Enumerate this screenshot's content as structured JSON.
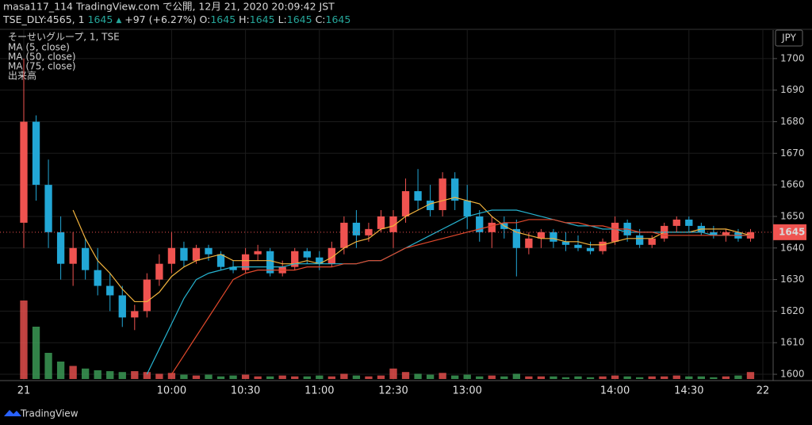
{
  "header": {
    "line1": "masa117_114 TradingView.com で公開, 12月 21, 2020 20:09:42 JST",
    "symbol": "TSE_DLY:4565, 1",
    "price": "1645",
    "arrow": "▲",
    "change": "+97 (+6.27%)",
    "o_label": "O:",
    "o": "1645",
    "h_label": "H:",
    "h": "1645",
    "l_label": "L:",
    "l": "1645",
    "c_label": "C:",
    "c": "1645",
    "footer": "TradingView"
  },
  "chart_data": {
    "type": "candlestick",
    "title": "そーせいグループ, 1, TSE",
    "currency": "JPY",
    "categories": [
      "21",
      null,
      null,
      null,
      null,
      null,
      null,
      null,
      null,
      null,
      null,
      null,
      "10:00",
      null,
      null,
      null,
      null,
      null,
      "10:30",
      null,
      null,
      null,
      null,
      null,
      "11:00",
      null,
      null,
      null,
      null,
      null,
      "12:30",
      null,
      null,
      null,
      null,
      null,
      "13:00",
      null,
      null,
      null,
      null,
      null,
      null,
      null,
      null,
      null,
      null,
      null,
      "14:00",
      null,
      null,
      null,
      null,
      null,
      "14:30",
      null,
      null,
      null,
      null,
      null,
      "22"
    ],
    "open": [
      1648,
      1680,
      1660,
      1645,
      1635,
      1640,
      1633,
      1628,
      1625,
      1618,
      1620,
      1630,
      1635,
      1640,
      1636,
      1640,
      1638,
      1634,
      1633,
      1638,
      1639,
      1632,
      1634,
      1639,
      1637,
      1635,
      1640,
      1648,
      1644,
      1646,
      1645,
      1650,
      1658,
      1655,
      1652,
      1662,
      1655,
      1650,
      1645,
      1648,
      1646,
      1640,
      1643,
      1645,
      1642,
      1641,
      1640,
      1639,
      1642,
      1648,
      1644,
      1641,
      1643,
      1647,
      1649,
      1647,
      1645,
      1644,
      1645,
      1643,
      null
    ],
    "high": [
      1700,
      1682,
      1668,
      1650,
      1645,
      1643,
      1640,
      1632,
      1628,
      1622,
      1632,
      1638,
      1645,
      1642,
      1641,
      1641,
      1639,
      1636,
      1640,
      1641,
      1640,
      1636,
      1640,
      1640,
      1639,
      1642,
      1650,
      1652,
      1648,
      1652,
      1652,
      1662,
      1665,
      1660,
      1664,
      1664,
      1660,
      1652,
      1650,
      1650,
      1649,
      1645,
      1646,
      1646,
      1645,
      1644,
      1642,
      1643,
      1650,
      1649,
      1646,
      1644,
      1648,
      1650,
      1650,
      1648,
      1647,
      1646,
      1646,
      1646,
      null
    ],
    "low": [
      1640,
      1655,
      1640,
      1630,
      1628,
      1630,
      1625,
      1620,
      1615,
      1614,
      1618,
      1628,
      1632,
      1634,
      1635,
      1636,
      1633,
      1632,
      1632,
      1636,
      1631,
      1631,
      1633,
      1635,
      1633,
      1634,
      1638,
      1640,
      1642,
      1645,
      1640,
      1648,
      1652,
      1650,
      1650,
      1652,
      1646,
      1642,
      1640,
      1643,
      1631,
      1638,
      1640,
      1640,
      1639,
      1639,
      1638,
      1638,
      1641,
      1642,
      1640,
      1640,
      1642,
      1645,
      1645,
      1644,
      1643,
      1642,
      1642,
      1642,
      null
    ],
    "close": [
      1680,
      1660,
      1645,
      1635,
      1640,
      1633,
      1628,
      1625,
      1618,
      1620,
      1630,
      1635,
      1640,
      1636,
      1640,
      1638,
      1634,
      1633,
      1638,
      1639,
      1632,
      1634,
      1639,
      1637,
      1635,
      1640,
      1648,
      1644,
      1646,
      1650,
      1650,
      1658,
      1655,
      1652,
      1662,
      1655,
      1650,
      1645,
      1648,
      1646,
      1640,
      1643,
      1645,
      1642,
      1641,
      1640,
      1639,
      1642,
      1648,
      1644,
      1641,
      1643,
      1647,
      1649,
      1647,
      1645,
      1644,
      1645,
      1643,
      1645,
      null
    ],
    "up_color": "#ef5350",
    "down_color": "#22a7d6",
    "series": [
      {
        "name": "MA (5, close)",
        "color": "#f2b33d",
        "values": [
          null,
          null,
          null,
          null,
          1652,
          1643,
          1636,
          1632,
          1627,
          1623,
          1623,
          1626,
          1631,
          1634,
          1636,
          1637,
          1638,
          1636,
          1636,
          1636,
          1636,
          1635,
          1635,
          1636,
          1635,
          1637,
          1640,
          1642,
          1643,
          1646,
          1647,
          1650,
          1652,
          1654,
          1655,
          1656,
          1655,
          1654,
          1650,
          1647,
          1645,
          1644,
          1643,
          1643,
          1642,
          1642,
          1641,
          1641,
          1642,
          1643,
          1643,
          1643,
          1645,
          1645,
          1645,
          1646,
          1646,
          1646,
          1645,
          1644,
          null
        ]
      },
      {
        "name": "MA (50, close)",
        "color": "#26b3d0",
        "values": [
          null,
          null,
          null,
          null,
          null,
          null,
          null,
          null,
          null,
          null,
          1600,
          1608,
          1616,
          1624,
          1630,
          1632,
          1633,
          1634,
          1634,
          1634,
          1634,
          1634,
          1635,
          1635,
          1635,
          1635,
          1635,
          1635,
          1636,
          1636,
          1638,
          1640,
          1642,
          1644,
          1646,
          1648,
          1650,
          1651,
          1652,
          1652,
          1652,
          1651,
          1650,
          1649,
          1648,
          1647,
          1647,
          1646,
          1646,
          1645,
          1645,
          1645,
          1645,
          1645,
          1645,
          1645,
          1644,
          1644,
          1644,
          1644,
          null
        ]
      },
      {
        "name": "MA (75, close)",
        "color": "#e2492c",
        "values": [
          null,
          null,
          null,
          null,
          null,
          null,
          null,
          null,
          null,
          null,
          null,
          null,
          1600,
          1606,
          1612,
          1618,
          1624,
          1630,
          1632,
          1633,
          1633,
          1633,
          1633,
          1634,
          1634,
          1634,
          1635,
          1635,
          1636,
          1636,
          1638,
          1640,
          1641,
          1642,
          1643,
          1644,
          1645,
          1646,
          1647,
          1648,
          1648,
          1649,
          1649,
          1649,
          1648,
          1648,
          1647,
          1647,
          1646,
          1646,
          1645,
          1645,
          1644,
          1644,
          1644,
          1644,
          1644,
          1644,
          1644,
          1644,
          null
        ]
      }
    ],
    "volume": {
      "name": "出来高",
      "volume_lim": [
        0,
        100000
      ],
      "values": [
        90000,
        60000,
        30000,
        20000,
        15000,
        12000,
        10000,
        9000,
        8000,
        9000,
        8000,
        6000,
        7000,
        5000,
        4000,
        5000,
        3000,
        4000,
        5000,
        3000,
        3000,
        4000,
        3000,
        3000,
        4000,
        3000,
        6000,
        4000,
        3000,
        4000,
        12000,
        8000,
        6000,
        5000,
        7000,
        4000,
        5000,
        3000,
        4000,
        3000,
        6000,
        3000,
        3000,
        3000,
        2000,
        3000,
        2000,
        3000,
        4000,
        3000,
        2000,
        3000,
        3000,
        4000,
        3000,
        3000,
        2000,
        3000,
        4000,
        8000,
        null
      ]
    },
    "last_price": 1645,
    "last_price_color": "#ef5350",
    "ylim": [
      1598,
      1708
    ],
    "yticks": [
      1600,
      1610,
      1620,
      1630,
      1640,
      1650,
      1660,
      1670,
      1680,
      1690,
      1700
    ],
    "grid": true
  }
}
